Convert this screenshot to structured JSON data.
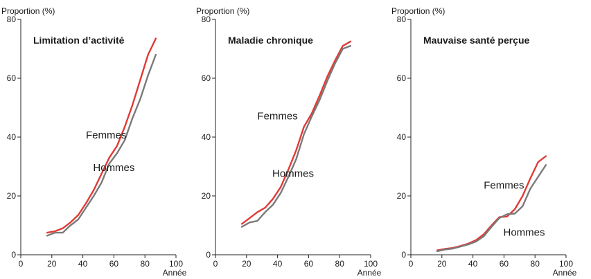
{
  "chart_data": [
    {
      "type": "line",
      "title": "Limitation d’activité",
      "ylabel": "Proportion (%)",
      "xlabel": "Année",
      "xlim": [
        0,
        100
      ],
      "ylim": [
        0,
        80
      ],
      "xticks": [
        "0",
        "20",
        "40",
        "60",
        "80",
        "100"
      ],
      "yticks": [
        "0",
        "20",
        "40",
        "60",
        "80"
      ],
      "series": [
        {
          "name": "Femmes",
          "color": "#e03a35",
          "x": [
            17,
            22,
            27,
            32,
            37,
            42,
            47,
            52,
            57,
            62,
            67,
            72,
            77,
            82,
            87
          ],
          "y": [
            7.5,
            8,
            9,
            11,
            13.5,
            17.5,
            22,
            27.5,
            33,
            37,
            43.5,
            51,
            59.5,
            68,
            73.5
          ]
        },
        {
          "name": "Hommes",
          "color": "#7a7a7a",
          "x": [
            17,
            22,
            27,
            32,
            37,
            42,
            47,
            52,
            57,
            62,
            67,
            72,
            77,
            82,
            87
          ],
          "y": [
            6.5,
            7.5,
            7.5,
            10,
            12,
            16,
            20,
            24.5,
            31,
            34.5,
            39,
            46.5,
            53,
            61,
            68
          ]
        }
      ],
      "annotations": [
        {
          "text": "Femmes",
          "x": 55,
          "y": 39.5
        },
        {
          "text": "Hommes",
          "x": 60,
          "y": 28.5
        }
      ]
    },
    {
      "type": "line",
      "title": "Maladie chronique",
      "ylabel": "Proportion (%)",
      "xlabel": "Année",
      "xlim": [
        0,
        100
      ],
      "ylim": [
        0,
        80
      ],
      "xticks": [
        "0",
        "20",
        "40",
        "60",
        "80",
        "100"
      ],
      "yticks": [
        "0",
        "20",
        "40",
        "60",
        "80"
      ],
      "series": [
        {
          "name": "Femmes",
          "color": "#e03a35",
          "x": [
            17,
            22,
            27,
            32,
            37,
            42,
            47,
            52,
            57,
            62,
            67,
            72,
            77,
            82,
            87
          ],
          "y": [
            10.5,
            12.5,
            14.5,
            16,
            19,
            23,
            29,
            35.5,
            43.5,
            48,
            54,
            60.5,
            66,
            71,
            72.5
          ]
        },
        {
          "name": "Hommes",
          "color": "#7a7a7a",
          "x": [
            17,
            22,
            27,
            32,
            37,
            42,
            47,
            52,
            57,
            62,
            67,
            72,
            77,
            82,
            87
          ],
          "y": [
            9.5,
            11,
            11.5,
            14.5,
            17,
            21,
            26.5,
            32.5,
            41,
            47,
            52.5,
            59,
            65,
            70,
            71
          ]
        }
      ],
      "annotations": [
        {
          "text": "Femmes",
          "x": 40,
          "y": 46
        },
        {
          "text": "Hommes",
          "x": 50,
          "y": 26.5
        }
      ]
    },
    {
      "type": "line",
      "title": "Mauvaise santé perçue",
      "ylabel": "Proportion (%)",
      "xlabel": "Année",
      "xlim": [
        0,
        100
      ],
      "ylim": [
        0,
        80
      ],
      "xticks": [
        "0",
        "20",
        "40",
        "60",
        "80",
        "100"
      ],
      "yticks": [
        "0",
        "20",
        "40",
        "60",
        "80"
      ],
      "series": [
        {
          "name": "Femmes",
          "color": "#e03a35",
          "x": [
            17,
            22,
            27,
            32,
            37,
            42,
            47,
            52,
            57,
            62,
            67,
            72,
            77,
            82,
            87
          ],
          "y": [
            1.5,
            2,
            2.3,
            3,
            3.8,
            5,
            7,
            10,
            12.8,
            13,
            15.5,
            20,
            26,
            31.5,
            33.5
          ]
        },
        {
          "name": "Hommes",
          "color": "#7a7a7a",
          "x": [
            17,
            22,
            27,
            32,
            37,
            42,
            47,
            52,
            57,
            62,
            67,
            72,
            77,
            82,
            87
          ],
          "y": [
            1.2,
            1.8,
            2.1,
            2.8,
            3.5,
            4.5,
            6.3,
            9.5,
            12.5,
            13.8,
            14,
            16.5,
            22.5,
            26.5,
            30.5
          ]
        }
      ],
      "annotations": [
        {
          "text": "Femmes",
          "x": 60,
          "y": 22.5
        },
        {
          "text": "Hommes",
          "x": 73,
          "y": 6.5
        }
      ]
    }
  ]
}
